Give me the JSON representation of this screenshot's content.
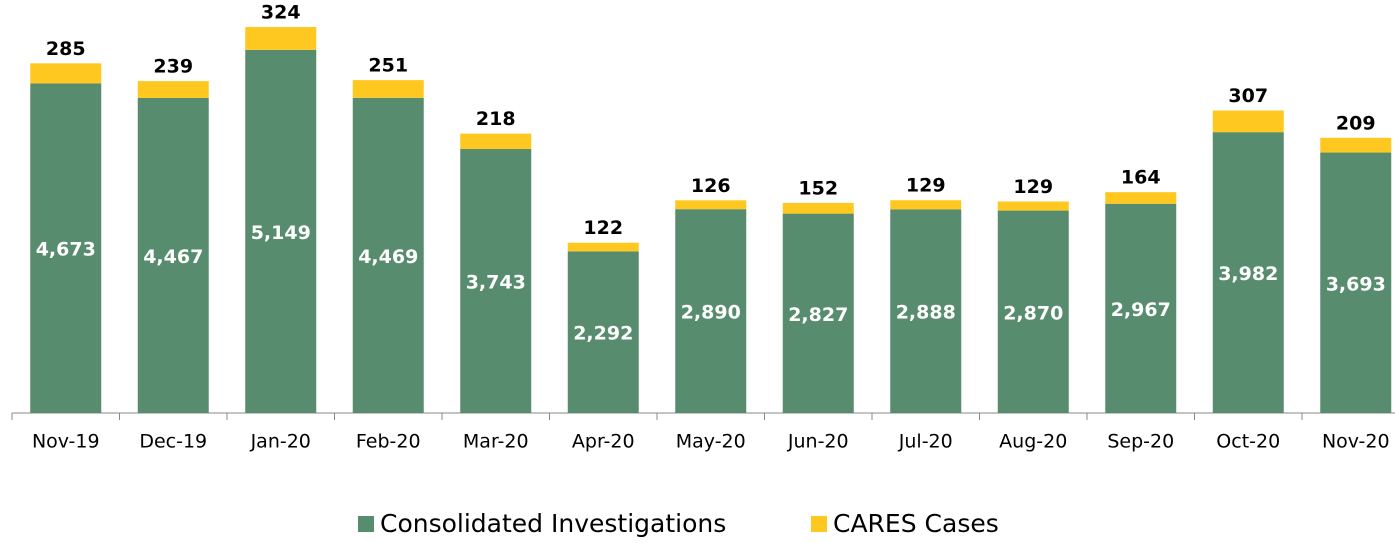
{
  "chart_data": {
    "type": "stacked_bar",
    "categories": [
      "Nov-19",
      "Dec-19",
      "Jan-20",
      "Feb-20",
      "Mar-20",
      "Apr-20",
      "May-20",
      "Jun-20",
      "Jul-20",
      "Aug-20",
      "Sep-20",
      "Oct-20",
      "Nov-20"
    ],
    "series": [
      {
        "name": "Consolidated Investigations",
        "color": "#588c6e",
        "values": [
          4673,
          4467,
          5149,
          4469,
          3743,
          2292,
          2890,
          2827,
          2888,
          2870,
          2967,
          3982,
          3693
        ],
        "value_labels": [
          "4,673",
          "4,467",
          "5,149",
          "4,469",
          "3,743",
          "2,292",
          "2,890",
          "2,827",
          "2,888",
          "2,870",
          "2,967",
          "3,982",
          "3,693"
        ]
      },
      {
        "name": "CARES Cases",
        "color": "#ffc820",
        "values": [
          285,
          239,
          324,
          251,
          218,
          122,
          126,
          152,
          129,
          129,
          164,
          307,
          209
        ]
      }
    ]
  }
}
